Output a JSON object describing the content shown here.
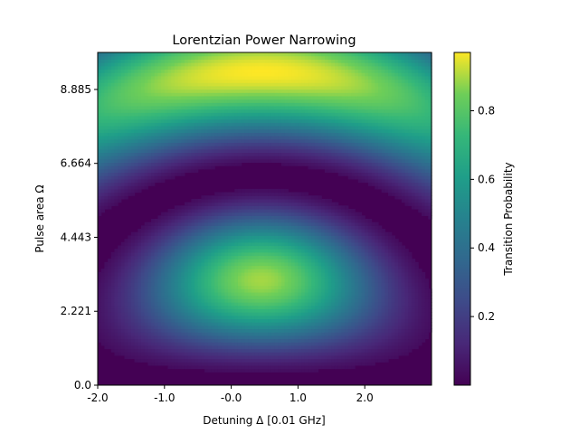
{
  "chart_data": {
    "type": "heatmap",
    "title": "Lorentzian Power Narrowing",
    "xlabel": "Detuning Δ [0.01 GHz]",
    "ylabel": "Pulse area Ω",
    "colorbar_label": "Transition Probability",
    "colormap": "viridis",
    "xlim": [
      -2.0,
      3.0
    ],
    "ylim": [
      0.0,
      9.997
    ],
    "clim": [
      0.0,
      0.97
    ],
    "x_ticks": [
      {
        "value": -2.0,
        "label": "-2.0"
      },
      {
        "value": -1.0,
        "label": "-1.0"
      },
      {
        "value": 0.0,
        "label": "-0.0"
      },
      {
        "value": 1.0,
        "label": "1.0"
      },
      {
        "value": 2.0,
        "label": "2.0"
      }
    ],
    "y_ticks": [
      {
        "value": 0.0,
        "label": "0.0"
      },
      {
        "value": 2.221,
        "label": "2.221"
      },
      {
        "value": 4.443,
        "label": "4.443"
      },
      {
        "value": 6.664,
        "label": "6.664"
      },
      {
        "value": 8.885,
        "label": "8.885"
      }
    ],
    "colorbar_ticks": [
      {
        "value": 0.2,
        "label": "0.2"
      },
      {
        "value": 0.4,
        "label": "0.4"
      },
      {
        "value": 0.6,
        "label": "0.6"
      },
      {
        "value": 0.8,
        "label": "0.8"
      }
    ],
    "features": {
      "resonance_center_x": 0.45,
      "first_peak_y": 3.2,
      "first_peak_value": 0.9,
      "second_peak_y_start": 8.9,
      "second_peak_value": 0.97,
      "minimum_near_y": 6.4
    },
    "grid": false
  }
}
